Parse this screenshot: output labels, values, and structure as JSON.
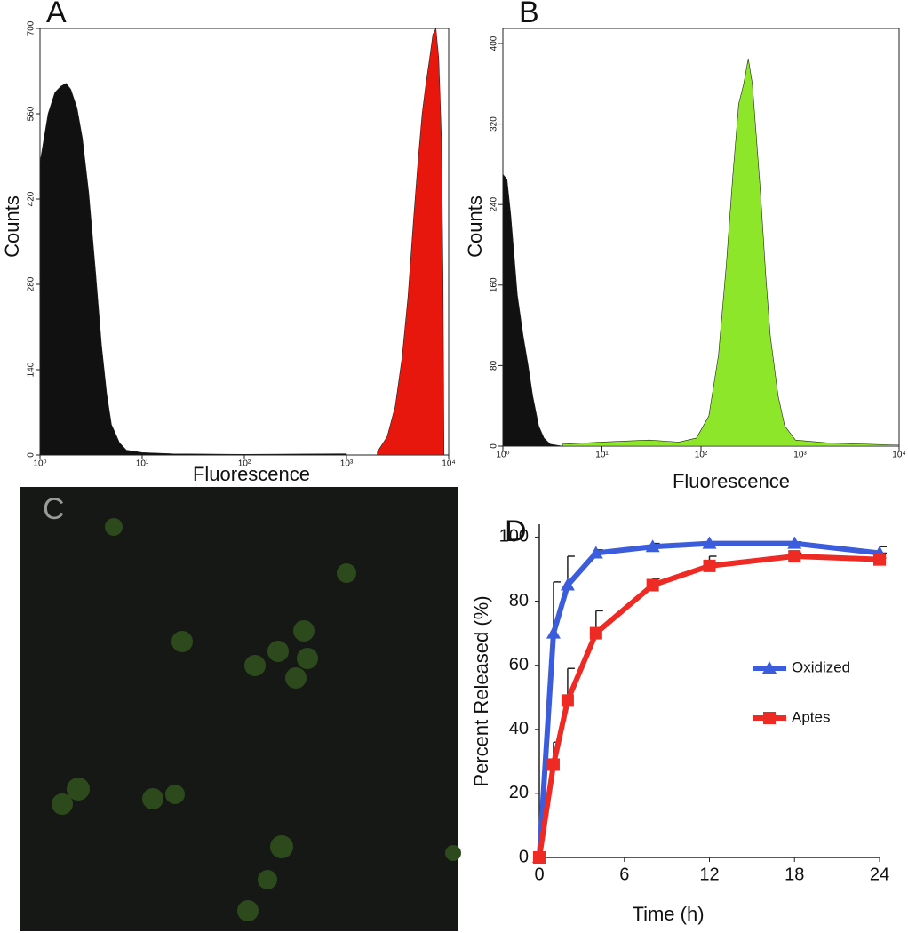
{
  "chart_data": [
    {
      "type": "area",
      "label": "A",
      "xlabel": "Fluorescence",
      "ylabel": "Counts",
      "log_x": true,
      "frame": true,
      "xlim": [
        1,
        10000
      ],
      "xticks": [
        {
          "value": 1,
          "label": "10⁰"
        },
        {
          "value": 10,
          "label": "10¹"
        },
        {
          "value": 100,
          "label": "10²"
        },
        {
          "value": 1000,
          "label": "10³"
        },
        {
          "value": 10000,
          "label": "10⁴"
        }
      ],
      "ylim": [
        0,
        700
      ],
      "yticks": [
        0,
        140,
        280,
        420,
        560,
        700
      ],
      "series": [
        {
          "color": "#111111",
          "x": [
            1,
            1.2,
            1.4,
            1.6,
            1.8,
            2,
            2.3,
            2.6,
            3,
            3.5,
            4,
            4.5,
            5,
            6,
            7,
            10,
            20,
            100,
            1000
          ],
          "values": [
            480,
            560,
            595,
            605,
            610,
            600,
            570,
            520,
            430,
            300,
            180,
            100,
            50,
            20,
            8,
            4,
            2,
            1,
            2
          ]
        },
        {
          "color": "#e8170d",
          "x": [
            2000,
            2500,
            3000,
            3500,
            4000,
            4500,
            5000,
            5500,
            6000,
            6500,
            7000,
            7500,
            8000,
            8500,
            8800,
            9000
          ],
          "values": [
            5,
            30,
            80,
            160,
            260,
            380,
            480,
            560,
            610,
            650,
            690,
            700,
            650,
            520,
            300,
            0
          ]
        }
      ]
    },
    {
      "type": "area",
      "label": "B",
      "xlabel": "Fluorescence",
      "ylabel": "Counts",
      "log_x": true,
      "frame": true,
      "xlim": [
        1,
        10000
      ],
      "xticks": [
        {
          "value": 1,
          "label": "10⁰"
        },
        {
          "value": 10,
          "label": "10¹"
        },
        {
          "value": 100,
          "label": "10²"
        },
        {
          "value": 1000,
          "label": "10³"
        },
        {
          "value": 10000,
          "label": "10⁴"
        }
      ],
      "ylim": [
        0,
        415
      ],
      "yticks": [
        0,
        80,
        160,
        240,
        320,
        400
      ],
      "series": [
        {
          "color": "#111111",
          "x": [
            1,
            1.1,
            1.2,
            1.4,
            1.6,
            1.8,
            2,
            2.3,
            2.6,
            3,
            4
          ],
          "values": [
            270,
            265,
            230,
            150,
            110,
            80,
            50,
            20,
            8,
            2,
            0
          ]
        },
        {
          "color": "#8ee62a",
          "x": [
            4,
            10,
            30,
            60,
            90,
            120,
            150,
            180,
            210,
            240,
            270,
            300,
            330,
            400,
            450,
            500,
            600,
            700,
            900,
            2000,
            10000
          ],
          "values": [
            2,
            4,
            6,
            4,
            8,
            30,
            90,
            180,
            270,
            340,
            360,
            385,
            360,
            250,
            170,
            110,
            50,
            20,
            6,
            3,
            1
          ]
        }
      ]
    },
    {
      "type": "line",
      "label": "D",
      "xlabel": "Time (h)",
      "ylabel": "Percent Released (%)",
      "xlim": [
        0,
        24
      ],
      "xticks": [
        0,
        6,
        12,
        18,
        24
      ],
      "ylim": [
        0,
        104
      ],
      "yticks": [
        0,
        20,
        40,
        60,
        80,
        100
      ],
      "series": [
        {
          "name": "Oxidized",
          "color": "#3b5ddb",
          "marker": "triangle",
          "x": [
            0,
            1,
            2,
            4,
            8,
            12,
            18,
            24
          ],
          "values": [
            0,
            70,
            85,
            95,
            97,
            98,
            98,
            95
          ],
          "errors": [
            0,
            16,
            9,
            1,
            1,
            0.5,
            0.5,
            2
          ]
        },
        {
          "name": "Aptes",
          "color": "#ee2a24",
          "marker": "square",
          "x": [
            0,
            1,
            2,
            4,
            8,
            12,
            18,
            24
          ],
          "values": [
            0,
            29,
            49,
            70,
            85,
            91,
            94,
            93
          ],
          "errors": [
            0,
            7,
            10,
            7,
            2,
            3,
            1,
            2
          ]
        }
      ]
    }
  ],
  "image_panel": {
    "label": "C"
  }
}
